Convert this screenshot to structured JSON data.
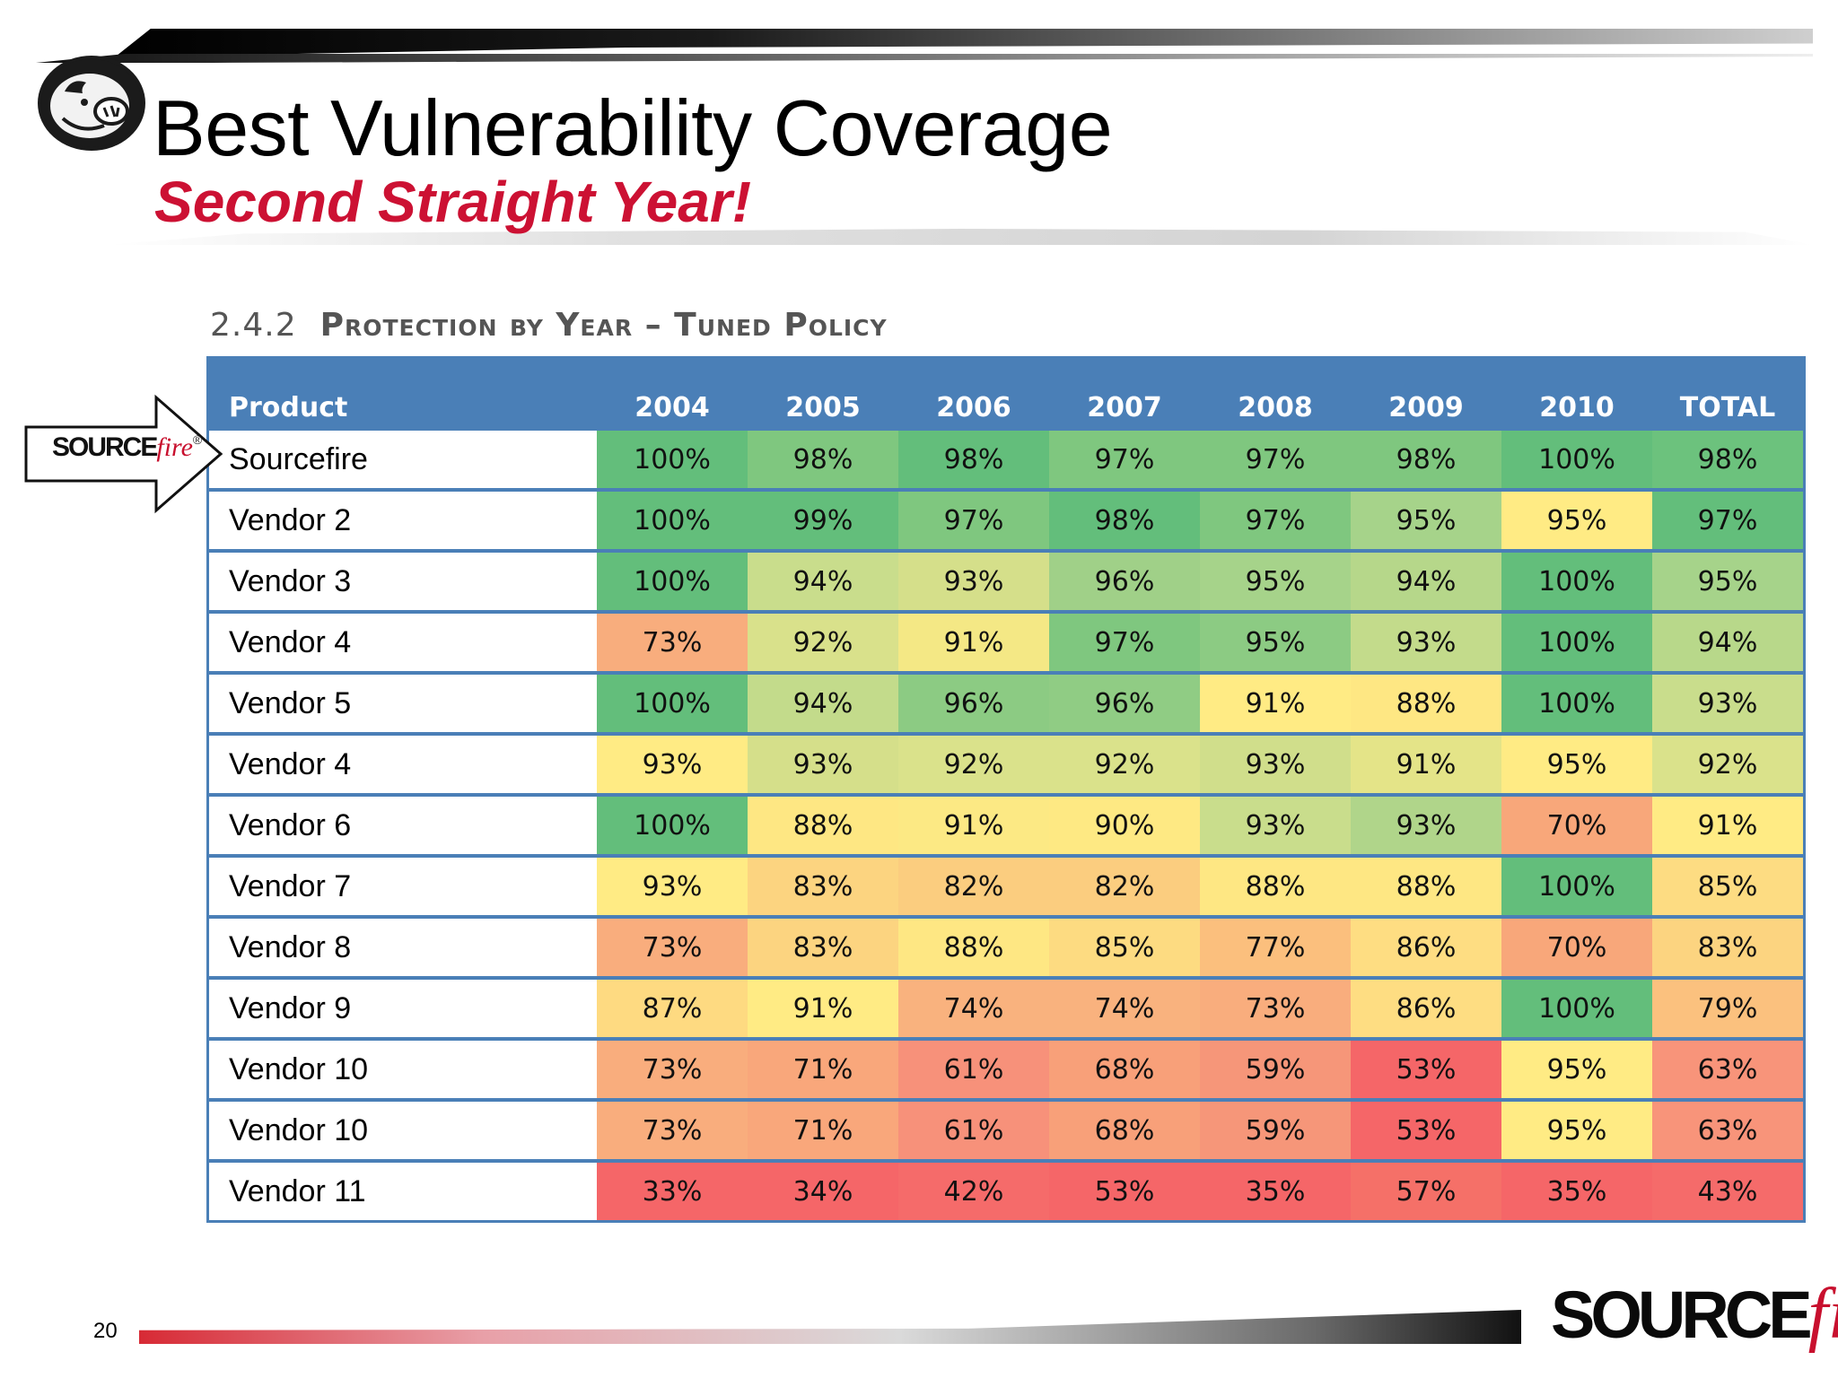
{
  "slide": {
    "title": "Best Vulnerability Coverage",
    "subtitle": "Second Straight Year!",
    "page_number": "20"
  },
  "section": {
    "number": "2.4.2",
    "title": "Protection by Year – Tuned Policy"
  },
  "logo": {
    "source": "SOURCE",
    "fire": "fire",
    "registered": "®",
    "icon": "pig-logo-icon"
  },
  "table": {
    "columns": [
      "Product",
      "2004",
      "2005",
      "2006",
      "2007",
      "2008",
      "2009",
      "2010",
      "TOTAL"
    ],
    "rows": [
      {
        "product": "Sourcefire",
        "values": [
          "100%",
          "98%",
          "98%",
          "97%",
          "97%",
          "98%",
          "100%",
          "98%"
        ]
      },
      {
        "product": "Vendor 2",
        "values": [
          "100%",
          "99%",
          "97%",
          "98%",
          "97%",
          "95%",
          "95%",
          "97%"
        ]
      },
      {
        "product": "Vendor 3",
        "values": [
          "100%",
          "94%",
          "93%",
          "96%",
          "95%",
          "94%",
          "100%",
          "95%"
        ]
      },
      {
        "product": "Vendor 4",
        "values": [
          "73%",
          "92%",
          "91%",
          "97%",
          "95%",
          "93%",
          "100%",
          "94%"
        ]
      },
      {
        "product": "Vendor 5",
        "values": [
          "100%",
          "94%",
          "96%",
          "96%",
          "91%",
          "88%",
          "100%",
          "93%"
        ]
      },
      {
        "product": "Vendor 4",
        "values": [
          "93%",
          "93%",
          "92%",
          "92%",
          "93%",
          "91%",
          "95%",
          "92%"
        ]
      },
      {
        "product": "Vendor 6",
        "values": [
          "100%",
          "88%",
          "91%",
          "90%",
          "93%",
          "93%",
          "70%",
          "91%"
        ]
      },
      {
        "product": "Vendor 7",
        "values": [
          "93%",
          "83%",
          "82%",
          "82%",
          "88%",
          "88%",
          "100%",
          "85%"
        ]
      },
      {
        "product": "Vendor 8",
        "values": [
          "73%",
          "83%",
          "88%",
          "85%",
          "77%",
          "86%",
          "70%",
          "83%"
        ]
      },
      {
        "product": "Vendor 9",
        "values": [
          "87%",
          "91%",
          "74%",
          "74%",
          "73%",
          "86%",
          "100%",
          "79%"
        ]
      },
      {
        "product": "Vendor 10",
        "values": [
          "73%",
          "71%",
          "61%",
          "68%",
          "59%",
          "53%",
          "95%",
          "63%"
        ]
      },
      {
        "product": "Vendor 10",
        "values": [
          "73%",
          "71%",
          "61%",
          "68%",
          "59%",
          "53%",
          "95%",
          "63%"
        ]
      },
      {
        "product": "Vendor 11",
        "values": [
          "33%",
          "34%",
          "42%",
          "53%",
          "35%",
          "57%",
          "35%",
          "43%"
        ]
      }
    ],
    "cell_colors": [
      [
        "#63be7b",
        "#7fc77f",
        "#63be7b",
        "#7fc77f",
        "#7fc77f",
        "#7fc77f",
        "#63be7b",
        "#6cc27d"
      ],
      [
        "#63be7b",
        "#63be7b",
        "#7fc77f",
        "#63be7b",
        "#7fc77f",
        "#a6d38a",
        "#ffeb84",
        "#63be7b"
      ],
      [
        "#63be7b",
        "#c9dd8c",
        "#d5df8a",
        "#a0d088",
        "#a6d38a",
        "#b6d78a",
        "#63be7b",
        "#a6d38a"
      ],
      [
        "#f8ad7d",
        "#d9e18b",
        "#f4e885",
        "#7fc77f",
        "#8ccb83",
        "#c3db8b",
        "#63be7b",
        "#b8d88a"
      ],
      [
        "#63be7b",
        "#c3db8b",
        "#8ccb83",
        "#90cc84",
        "#ffeb84",
        "#fee783",
        "#63be7b",
        "#c9dd8c"
      ],
      [
        "#ffeb84",
        "#d5df8a",
        "#dae28b",
        "#dae28b",
        "#d0de8b",
        "#e4e488",
        "#ffeb84",
        "#dae28b"
      ],
      [
        "#63be7b",
        "#fee783",
        "#fce984",
        "#fee983",
        "#c9dd8c",
        "#b0d58a",
        "#f8a77a",
        "#ffeb84"
      ],
      [
        "#ffeb84",
        "#fcd480",
        "#fbcd7f",
        "#fbcd7f",
        "#fee783",
        "#fee783",
        "#63be7b",
        "#fddc82"
      ],
      [
        "#f9ad7d",
        "#fcd480",
        "#fee783",
        "#fddb81",
        "#fbbf7d",
        "#fedd82",
        "#f8a77a",
        "#fcd480"
      ],
      [
        "#feda81",
        "#ffeb84",
        "#f9b27e",
        "#f9b27e",
        "#f9ad7d",
        "#fedd82",
        "#63be7b",
        "#fbc17e"
      ],
      [
        "#f9ad7d",
        "#f9a77b",
        "#f7917a",
        "#f8a079",
        "#f69679",
        "#f56668",
        "#ffeb84",
        "#f8947a"
      ],
      [
        "#f9ad7d",
        "#f9a77b",
        "#f7917a",
        "#f8a079",
        "#f69679",
        "#f56668",
        "#ffeb84",
        "#f8947a"
      ],
      [
        "#f56668",
        "#f56668",
        "#f56b6a",
        "#f56668",
        "#f56668",
        "#f57068",
        "#f56668",
        "#f56b6a"
      ]
    ]
  }
}
